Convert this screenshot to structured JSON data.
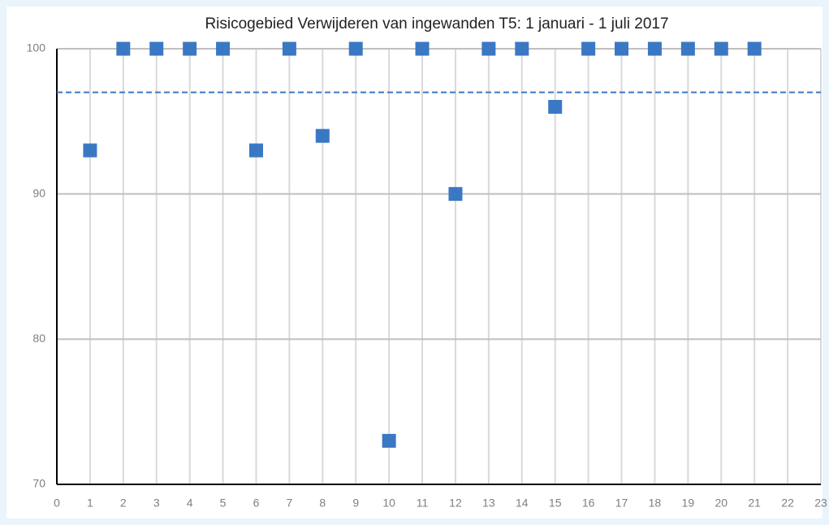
{
  "chart_data": {
    "type": "scatter",
    "title": "Risicogebied Verwijderen van ingewanden T5: 1 januari - 1 juli 2017",
    "x": [
      1,
      2,
      3,
      4,
      5,
      6,
      7,
      8,
      9,
      10,
      11,
      12,
      13,
      14,
      15,
      16,
      17,
      18,
      19,
      20,
      21
    ],
    "series": [
      {
        "color": "#3b78c4",
        "values": [
          93,
          100,
          100,
          100,
          100,
          93,
          100,
          94,
          100,
          73,
          100,
          90,
          100,
          100,
          96,
          100,
          100,
          100,
          100,
          100,
          100
        ]
      }
    ],
    "reference_line": {
      "value": 97,
      "color": "#3b78c4",
      "style": "dashed"
    },
    "xlim": [
      0,
      23
    ],
    "xticks": [
      0,
      1,
      2,
      3,
      4,
      5,
      6,
      7,
      8,
      9,
      10,
      11,
      12,
      13,
      14,
      15,
      16,
      17,
      18,
      19,
      20,
      21,
      22,
      23
    ],
    "ylim": [
      70,
      100
    ],
    "yticks": [
      70,
      80,
      90,
      100
    ],
    "grid": true
  }
}
